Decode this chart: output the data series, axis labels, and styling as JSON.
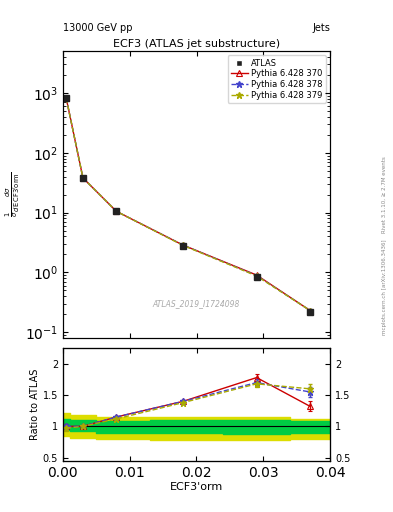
{
  "title": "ECF3 (ATLAS jet substructure)",
  "top_left_label": "13000 GeV pp",
  "top_right_label": "Jets",
  "watermark": "ATLAS_2019_I1724098",
  "ylabel_ratio": "Ratio to ATLAS",
  "xlabel": "ECF3'orm",
  "x_data": [
    0.0005,
    0.003,
    0.008,
    0.018,
    0.029,
    0.037
  ],
  "atlas_y": [
    820.0,
    38.0,
    10.5,
    2.8,
    0.85,
    0.22
  ],
  "pythia370_y": [
    820.0,
    38.0,
    10.5,
    2.85,
    0.9,
    0.23
  ],
  "pythia378_y": [
    820.0,
    38.0,
    10.5,
    2.85,
    0.88,
    0.23
  ],
  "pythia379_y": [
    820.0,
    38.0,
    10.5,
    2.82,
    0.87,
    0.23
  ],
  "ratio370_y": [
    1.0,
    1.0,
    1.15,
    1.4,
    1.78,
    1.32
  ],
  "ratio378_y": [
    1.0,
    1.0,
    1.15,
    1.4,
    1.7,
    1.55
  ],
  "ratio379_y": [
    0.97,
    1.0,
    1.12,
    1.38,
    1.68,
    1.6
  ],
  "ratio_err370": [
    0.04,
    0.02,
    0.02,
    0.02,
    0.05,
    0.08
  ],
  "ratio_err378": [
    0.04,
    0.02,
    0.02,
    0.02,
    0.05,
    0.08
  ],
  "ratio_err379": [
    0.04,
    0.02,
    0.02,
    0.02,
    0.05,
    0.08
  ],
  "band_x_edges": [
    0.0,
    0.001,
    0.005,
    0.013,
    0.024,
    0.034,
    0.04
  ],
  "green_band_upper": [
    1.12,
    1.1,
    1.08,
    1.1,
    1.1,
    1.08
  ],
  "green_band_lower": [
    0.95,
    0.92,
    0.9,
    0.9,
    0.88,
    0.9
  ],
  "yellow_band_upper": [
    1.22,
    1.18,
    1.15,
    1.15,
    1.15,
    1.12
  ],
  "yellow_band_lower": [
    0.85,
    0.82,
    0.8,
    0.78,
    0.78,
    0.8
  ],
  "color_atlas": "#222222",
  "color_pythia370": "#cc0000",
  "color_pythia378": "#4444cc",
  "color_pythia379": "#aaaa00",
  "color_green_band": "#00cc44",
  "color_yellow_band": "#dddd00",
  "ylim_main": [
    0.08,
    5000
  ],
  "ylim_ratio": [
    0.45,
    2.25
  ],
  "xlim": [
    0.0,
    0.04
  ]
}
